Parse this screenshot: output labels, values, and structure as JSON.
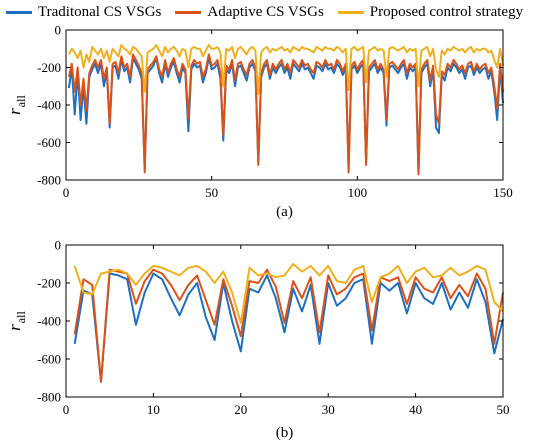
{
  "chart_data": [
    {
      "type": "line",
      "caption": "(a)",
      "ylabel": "r",
      "ylabel_sub": "all",
      "xlim": [
        0,
        150
      ],
      "ylim": [
        -800,
        0
      ],
      "xticks": [
        "0",
        "50",
        "100",
        "150"
      ],
      "yticks": [
        "0",
        "-200",
        "-400",
        "-600",
        "-800"
      ],
      "x": [
        1,
        2,
        3,
        4,
        5,
        6,
        7,
        8,
        9,
        10,
        11,
        12,
        13,
        14,
        15,
        16,
        17,
        18,
        19,
        20,
        21,
        22,
        23,
        24,
        25,
        26,
        27,
        28,
        29,
        30,
        31,
        32,
        33,
        34,
        35,
        36,
        37,
        38,
        39,
        40,
        41,
        42,
        43,
        44,
        45,
        46,
        47,
        48,
        49,
        50,
        51,
        52,
        53,
        54,
        55,
        56,
        57,
        58,
        59,
        60,
        61,
        62,
        63,
        64,
        65,
        66,
        67,
        68,
        69,
        70,
        71,
        72,
        73,
        74,
        75,
        76,
        77,
        78,
        79,
        80,
        81,
        82,
        83,
        84,
        85,
        86,
        87,
        88,
        89,
        90,
        91,
        92,
        93,
        94,
        95,
        96,
        97,
        98,
        99,
        100,
        101,
        102,
        103,
        104,
        105,
        106,
        107,
        108,
        109,
        110,
        111,
        112,
        113,
        114,
        115,
        116,
        117,
        118,
        119,
        120,
        121,
        122,
        123,
        124,
        125,
        126,
        127,
        128,
        129,
        130,
        131,
        132,
        133,
        134,
        135,
        136,
        137,
        138,
        139,
        140,
        141,
        142,
        143,
        144,
        145,
        146,
        147,
        148,
        149,
        150
      ],
      "series": [
        {
          "name": "Traditonal CS VSGs",
          "color": "#1f6fbf",
          "values": [
            -310,
            -200,
            -450,
            -230,
            -480,
            -300,
            -500,
            -250,
            -210,
            -180,
            -230,
            -180,
            -300,
            -220,
            -520,
            -200,
            -190,
            -260,
            -160,
            -220,
            -200,
            -280,
            -150,
            -180,
            -210,
            -260,
            -740,
            -230,
            -210,
            -190,
            -150,
            -230,
            -280,
            -180,
            -250,
            -200,
            -170,
            -230,
            -280,
            -200,
            -230,
            -540,
            -210,
            -180,
            -200,
            -190,
            -280,
            -230,
            -150,
            -210,
            -200,
            -180,
            -260,
            -590,
            -210,
            -230,
            -180,
            -300,
            -200,
            -190,
            -230,
            -270,
            -200,
            -180,
            -220,
            -700,
            -250,
            -200,
            -180,
            -260,
            -200,
            -230,
            -200,
            -180,
            -230,
            -200,
            -260,
            -180,
            -200,
            -220,
            -180,
            -210,
            -200,
            -230,
            -260,
            -190,
            -200,
            -220,
            -180,
            -210,
            -200,
            -230,
            -180,
            -200,
            -240,
            -200,
            -730,
            -210,
            -190,
            -230,
            -200,
            -180,
            -700,
            -220,
            -200,
            -180,
            -230,
            -200,
            -230,
            -510,
            -200,
            -190,
            -210,
            -230,
            -200,
            -180,
            -260,
            -200,
            -220,
            -200,
            -760,
            -230,
            -200,
            -180,
            -300,
            -210,
            -520,
            -550,
            -240,
            -270,
            -200,
            -220,
            -180,
            -200,
            -230,
            -210,
            -260,
            -200,
            -190,
            -240,
            -200,
            -230,
            -210,
            -200,
            -260,
            -220,
            -330,
            -480,
            -200,
            -390
          ]
        },
        {
          "name": "Adaptive CS VSGs",
          "color": "#d95319",
          "values": [
            -250,
            -180,
            -330,
            -200,
            -400,
            -260,
            -430,
            -230,
            -190,
            -160,
            -200,
            -160,
            -260,
            -200,
            -500,
            -180,
            -170,
            -230,
            -140,
            -200,
            -180,
            -250,
            -130,
            -160,
            -190,
            -230,
            -760,
            -210,
            -190,
            -170,
            -140,
            -210,
            -250,
            -160,
            -230,
            -180,
            -150,
            -210,
            -250,
            -180,
            -210,
            -470,
            -190,
            -160,
            -180,
            -170,
            -250,
            -210,
            -130,
            -190,
            -180,
            -160,
            -230,
            -560,
            -190,
            -210,
            -160,
            -270,
            -180,
            -170,
            -210,
            -240,
            -180,
            -160,
            -200,
            -720,
            -230,
            -180,
            -160,
            -240,
            -180,
            -210,
            -180,
            -160,
            -210,
            -180,
            -230,
            -160,
            -180,
            -200,
            -160,
            -190,
            -180,
            -210,
            -230,
            -170,
            -180,
            -200,
            -160,
            -190,
            -180,
            -210,
            -160,
            -180,
            -220,
            -180,
            -760,
            -190,
            -170,
            -210,
            -180,
            -160,
            -720,
            -200,
            -180,
            -160,
            -210,
            -180,
            -210,
            -480,
            -180,
            -170,
            -190,
            -210,
            -180,
            -160,
            -230,
            -180,
            -200,
            -180,
            -770,
            -210,
            -180,
            -160,
            -270,
            -190,
            -450,
            -500,
            -220,
            -240,
            -180,
            -200,
            -160,
            -180,
            -210,
            -190,
            -230,
            -180,
            -170,
            -220,
            -180,
            -210,
            -190,
            -180,
            -230,
            -200,
            -300,
            -420,
            -180,
            -330
          ]
        },
        {
          "name": "Proposed control strategy",
          "color": "#edb120",
          "values": [
            -130,
            -100,
            -120,
            -150,
            -110,
            -200,
            -130,
            -170,
            -90,
            -110,
            -130,
            -100,
            -150,
            -110,
            -170,
            -100,
            -120,
            -140,
            -80,
            -100,
            -110,
            -130,
            -90,
            -100,
            -120,
            -140,
            -330,
            -120,
            -110,
            -100,
            -80,
            -110,
            -140,
            -90,
            -120,
            -100,
            -90,
            -110,
            -140,
            -100,
            -110,
            -200,
            -100,
            -90,
            -100,
            -100,
            -140,
            -110,
            -80,
            -100,
            -100,
            -90,
            -120,
            -300,
            -100,
            -110,
            -90,
            -150,
            -100,
            -90,
            -110,
            -130,
            -100,
            -90,
            -110,
            -340,
            -120,
            -100,
            -90,
            -120,
            -100,
            -110,
            -100,
            -90,
            -110,
            -100,
            -120,
            -90,
            -100,
            -110,
            -90,
            -100,
            -100,
            -110,
            -120,
            -90,
            -100,
            -110,
            -90,
            -100,
            -100,
            -110,
            -90,
            -100,
            -120,
            -100,
            -320,
            -100,
            -90,
            -110,
            -100,
            -90,
            -280,
            -110,
            -100,
            -90,
            -110,
            -100,
            -110,
            -250,
            -100,
            -90,
            -100,
            -110,
            -100,
            -90,
            -120,
            -100,
            -110,
            -100,
            -300,
            -110,
            -100,
            -90,
            -140,
            -100,
            -210,
            -250,
            -110,
            -130,
            -100,
            -110,
            -90,
            -100,
            -110,
            -100,
            -120,
            -100,
            -90,
            -120,
            -100,
            -110,
            -100,
            -100,
            -120,
            -110,
            -160,
            -200,
            -100,
            -190
          ]
        }
      ]
    },
    {
      "type": "line",
      "caption": "(b)",
      "ylabel": "r",
      "ylabel_sub": "all",
      "xlim": [
        0,
        50
      ],
      "ylim": [
        -800,
        0
      ],
      "xticks": [
        "0",
        "10",
        "20",
        "30",
        "40",
        "50"
      ],
      "yticks": [
        "0",
        "-200",
        "-400",
        "-600",
        "-800"
      ],
      "x": [
        1,
        2,
        3,
        4,
        5,
        6,
        7,
        8,
        9,
        10,
        11,
        12,
        13,
        14,
        15,
        16,
        17,
        18,
        19,
        20,
        21,
        22,
        23,
        24,
        25,
        26,
        27,
        28,
        29,
        30,
        31,
        32,
        33,
        34,
        35,
        36,
        37,
        38,
        39,
        40,
        41,
        42,
        43,
        44,
        45,
        46,
        47,
        48,
        49,
        50
      ],
      "series": [
        {
          "name": "Traditonal CS VSGs",
          "color": "#1f6fbf",
          "values": [
            -520,
            -240,
            -260,
            -720,
            -150,
            -160,
            -180,
            -420,
            -250,
            -150,
            -180,
            -280,
            -370,
            -260,
            -200,
            -380,
            -500,
            -200,
            -400,
            -560,
            -230,
            -250,
            -160,
            -280,
            -460,
            -230,
            -350,
            -210,
            -520,
            -200,
            -320,
            -280,
            -200,
            -180,
            -520,
            -200,
            -240,
            -200,
            -360,
            -200,
            -280,
            -310,
            -200,
            -340,
            -250,
            -330,
            -180,
            -300,
            -570,
            -390
          ]
        },
        {
          "name": "Adaptive CS VSGs",
          "color": "#d95319",
          "values": [
            -470,
            -180,
            -210,
            -720,
            -130,
            -140,
            -150,
            -310,
            -190,
            -130,
            -150,
            -210,
            -290,
            -210,
            -160,
            -290,
            -420,
            -180,
            -320,
            -480,
            -190,
            -200,
            -130,
            -220,
            -410,
            -190,
            -280,
            -170,
            -460,
            -160,
            -260,
            -230,
            -170,
            -150,
            -450,
            -170,
            -190,
            -170,
            -310,
            -170,
            -230,
            -250,
            -170,
            -280,
            -210,
            -270,
            -150,
            -230,
            -520,
            -250
          ]
        },
        {
          "name": "Proposed control strategy",
          "color": "#edb120",
          "values": [
            -110,
            -250,
            -260,
            -150,
            -140,
            -130,
            -150,
            -210,
            -150,
            -110,
            -120,
            -140,
            -160,
            -120,
            -110,
            -140,
            -200,
            -140,
            -250,
            -410,
            -120,
            -160,
            -150,
            -170,
            -160,
            -100,
            -140,
            -110,
            -160,
            -110,
            -190,
            -200,
            -130,
            -110,
            -300,
            -170,
            -150,
            -110,
            -200,
            -140,
            -120,
            -170,
            -160,
            -120,
            -160,
            -140,
            -110,
            -130,
            -300,
            -350
          ]
        }
      ]
    }
  ]
}
